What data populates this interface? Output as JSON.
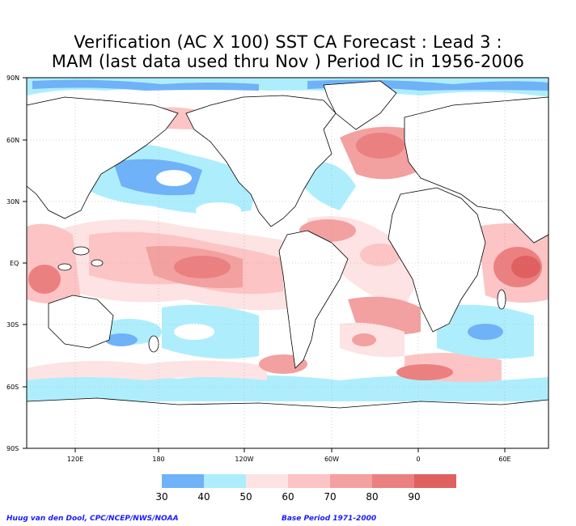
{
  "title": {
    "line1": "Verification (AC X 100) SST CA Forecast : Lead 3 :",
    "line2": "MAM (last data used thru Nov ) Period IC in 1956-2006"
  },
  "map": {
    "lat_labels": [
      "90N",
      "60N",
      "30N",
      "EQ",
      "30S",
      "60S",
      "90S"
    ],
    "lon_labels": [
      "120E",
      "180",
      "120W",
      "60W",
      "0",
      "60E"
    ]
  },
  "legend": {
    "labels": [
      "30",
      "40",
      "50",
      "60",
      "70",
      "80",
      "90"
    ],
    "colors": [
      "#6fb2f7",
      "#aeeefc",
      "#fde3e3",
      "#fcc4c4",
      "#f3a0a0",
      "#eb8080",
      "#e06060"
    ]
  },
  "credits": {
    "left": "Huug van den Dool, CPC/NCEP/NWS/NOAA",
    "right": "Base Period 1971-2000"
  }
}
